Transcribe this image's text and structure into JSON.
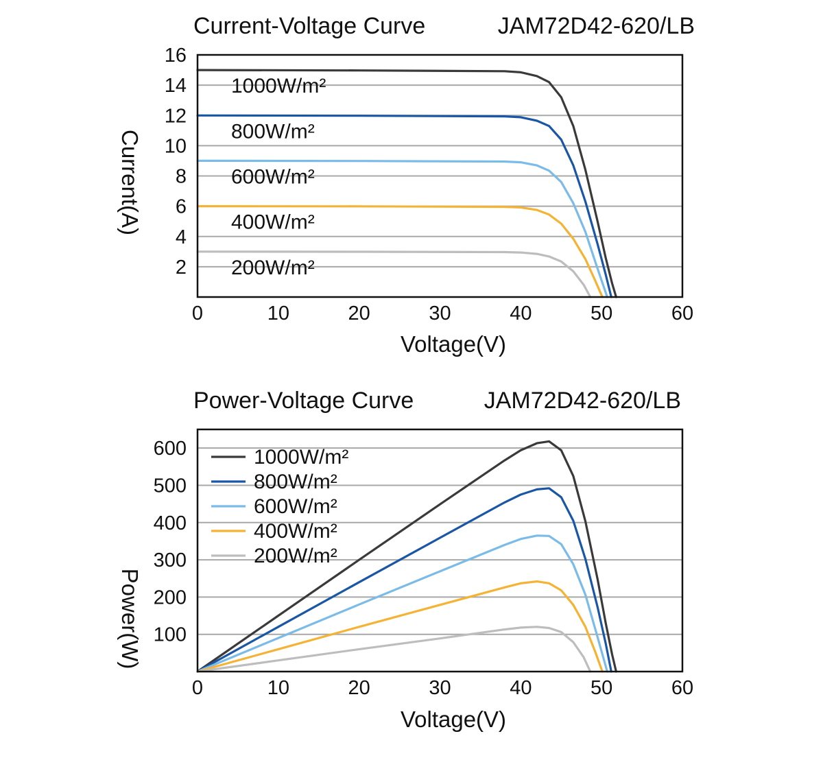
{
  "chart_data": [
    {
      "type": "line",
      "title": "Current-Voltage Curve",
      "model": "JAM72D42-620/LB",
      "xlabel": "Voltage(V)",
      "ylabel": "Current(A)",
      "xlim": [
        0,
        60
      ],
      "ylim": [
        0,
        16
      ],
      "xticks": [
        "0",
        "10",
        "20",
        "30",
        "40",
        "50",
        "60"
      ],
      "yticks": [
        "2",
        "4",
        "6",
        "8",
        "10",
        "12",
        "14",
        "16"
      ],
      "grid": "horizontal",
      "legend": "inline-labels",
      "series": [
        {
          "name": "1000W/m²",
          "color": "#3a3a3a",
          "x": [
            0,
            20,
            38,
            40,
            42,
            43.5,
            45,
            46.5,
            48,
            49.5,
            50.5,
            51.3,
            51.8
          ],
          "y": [
            15.0,
            14.97,
            14.92,
            14.85,
            14.6,
            14.2,
            13.2,
            11.3,
            8.4,
            5.0,
            2.6,
            0.9,
            0
          ]
        },
        {
          "name": "800W/m²",
          "color": "#1a56a6",
          "x": [
            0,
            20,
            38,
            40,
            42,
            43.5,
            45,
            46.5,
            48,
            49.5,
            50.5,
            51.2
          ],
          "y": [
            12.0,
            11.98,
            11.94,
            11.88,
            11.65,
            11.3,
            10.4,
            8.7,
            6.3,
            3.5,
            1.5,
            0
          ]
        },
        {
          "name": "600W/m²",
          "color": "#7bbbe8",
          "x": [
            0,
            20,
            38,
            40,
            42,
            43.5,
            45,
            46.5,
            48,
            49.3,
            50.7
          ],
          "y": [
            9.0,
            8.99,
            8.95,
            8.9,
            8.7,
            8.35,
            7.6,
            6.2,
            4.3,
            2.2,
            0
          ]
        },
        {
          "name": "400W/m²",
          "color": "#f5b335",
          "x": [
            0,
            20,
            38,
            40,
            42,
            43.5,
            45,
            46.5,
            48,
            49.2,
            50.1
          ],
          "y": [
            6.0,
            5.99,
            5.96,
            5.92,
            5.75,
            5.45,
            4.85,
            3.85,
            2.5,
            1.1,
            0
          ]
        },
        {
          "name": "200W/m²",
          "color": "#bdbdbd",
          "x": [
            0,
            20,
            38,
            40,
            42,
            43.5,
            45,
            46.5,
            47.8,
            48.6
          ],
          "y": [
            3.0,
            2.99,
            2.97,
            2.94,
            2.85,
            2.68,
            2.35,
            1.7,
            0.8,
            0
          ]
        }
      ]
    },
    {
      "type": "line",
      "title": "Power-Voltage Curve",
      "model": "JAM72D42-620/LB",
      "xlabel": "Voltage(V)",
      "ylabel": "Power(W)",
      "xlim": [
        0,
        60
      ],
      "ylim": [
        0,
        650
      ],
      "xticks": [
        "0",
        "10",
        "20",
        "30",
        "40",
        "50",
        "60"
      ],
      "yticks": [
        "100",
        "200",
        "300",
        "400",
        "500",
        "600"
      ],
      "grid": "horizontal",
      "legend": "top-left",
      "series": [
        {
          "name": "1000W/m²",
          "color": "#3a3a3a",
          "x": [
            0,
            10,
            20,
            30,
            38,
            40,
            42,
            43.5,
            45,
            46.5,
            48,
            49.5,
            50.5,
            51.3,
            51.8
          ],
          "y": [
            0,
            150,
            300,
            449,
            567,
            594,
            613,
            618,
            594,
            525,
            403,
            248,
            131,
            46,
            0
          ]
        },
        {
          "name": "800W/m²",
          "color": "#1a56a6",
          "x": [
            0,
            10,
            20,
            30,
            38,
            40,
            42,
            43.5,
            45,
            46.5,
            48,
            49.5,
            50.5,
            51.2
          ],
          "y": [
            0,
            120,
            240,
            359,
            454,
            475,
            489,
            492,
            468,
            405,
            302,
            173,
            76,
            0
          ]
        },
        {
          "name": "600W/m²",
          "color": "#7bbbe8",
          "x": [
            0,
            10,
            20,
            30,
            38,
            40,
            42,
            43.5,
            45,
            46.5,
            48,
            49.3,
            50.7
          ],
          "y": [
            0,
            90,
            180,
            269,
            340,
            356,
            365,
            364,
            342,
            288,
            206,
            108,
            0
          ]
        },
        {
          "name": "400W/m²",
          "color": "#f5b335",
          "x": [
            0,
            10,
            20,
            30,
            38,
            40,
            42,
            43.5,
            45,
            46.5,
            48,
            49.2,
            50.1
          ],
          "y": [
            0,
            60,
            120,
            179,
            226,
            237,
            242,
            237,
            218,
            179,
            120,
            54,
            0
          ]
        },
        {
          "name": "200W/m²",
          "color": "#bdbdbd",
          "x": [
            0,
            10,
            20,
            30,
            38,
            40,
            42,
            43.5,
            45,
            46.5,
            47.8,
            48.6
          ],
          "y": [
            0,
            30,
            60,
            89,
            113,
            118,
            120,
            117,
            106,
            79,
            38,
            0
          ]
        }
      ]
    }
  ]
}
